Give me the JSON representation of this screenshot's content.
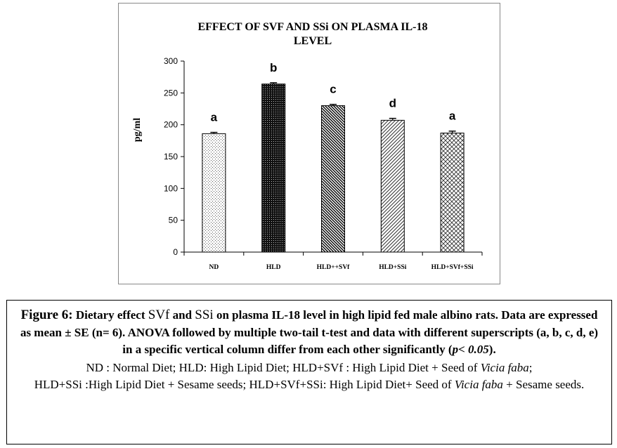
{
  "chart_data": {
    "type": "bar",
    "title_lines": [
      "EFFECT OF SVF AND SSi ON PLASMA IL-18",
      "LEVEL"
    ],
    "ylabel": "pg/ml",
    "xlabel": "",
    "ylim": [
      0,
      300
    ],
    "yticks": [
      "0",
      "50",
      "100",
      "150",
      "200",
      "250",
      "300"
    ],
    "grid": false,
    "legend": "none",
    "categories": [
      "ND",
      "HLD",
      "HLD++SVf",
      "HLD+SSi",
      "HLD+SVf+SSi"
    ],
    "values": [
      186,
      264,
      230,
      207,
      187
    ],
    "errors": [
      2,
      2,
      2,
      3,
      3
    ],
    "significance": [
      "a",
      "b",
      "c",
      "d",
      "a"
    ],
    "patterns": [
      "dots-light",
      "dots-dense",
      "diag-down-dense",
      "diag-up",
      "diag-cross"
    ]
  },
  "caption": {
    "figure_label": "Figure 6:",
    "main_pre": " Dietary effect ",
    "svf": "SVf",
    "main_and": " and ",
    "ssi": "SSi",
    "main_post": " on plasma IL-18 level in high lipid fed male albino rats. Data are expressed as mean ± SE (n= 6). ANOVA followed by multiple two-tail t-test and data with different superscripts (a, b, c, d, e) in a specific vertical column differ from each other significantly (",
    "p_text": "p< 0.05",
    "main_end": ").",
    "abbr1_pre": "ND : Normal Diet; HLD: High Lipid Diet; HLD+",
    "abbr1_svf": "SVf",
    "abbr1_mid": " : High Lipid Diet + Seed of ",
    "abbr1_species": "Vicia faba",
    "abbr1_end": ";",
    "abbr2_pre": "HLD+",
    "abbr2_ssi": "SSi",
    "abbr2_mid": " :High Lipid Diet + Sesame seeds; HLD+",
    "abbr2_svf": "SVf",
    "abbr2_plus": "+",
    "abbr2_ssi2": "SSi",
    "abbr2_mid2": ": High Lipid Diet+ Seed of ",
    "abbr2_species": "Vicia faba",
    "abbr2_end": " + Sesame seeds."
  }
}
